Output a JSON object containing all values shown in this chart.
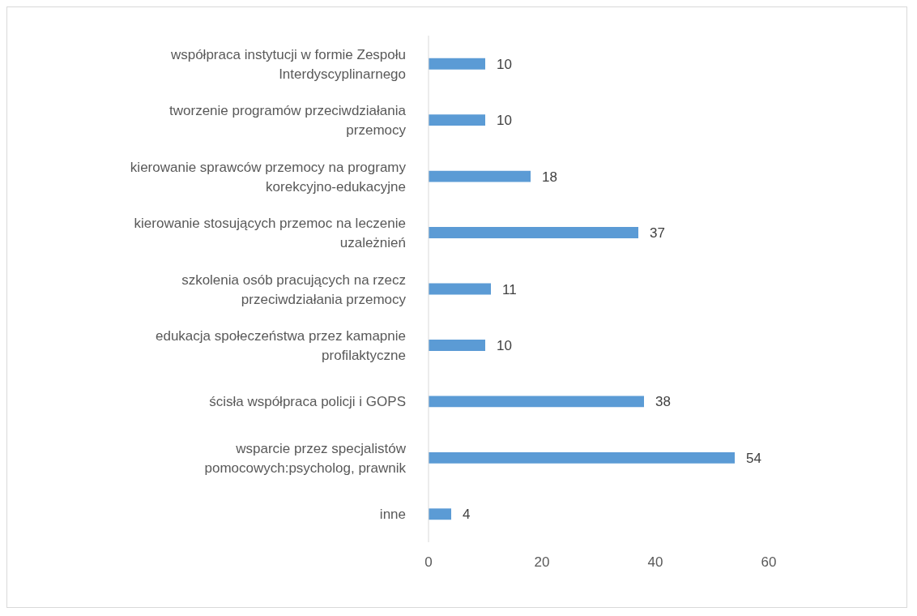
{
  "chart_data": {
    "type": "bar",
    "orientation": "horizontal",
    "categories": [
      "współpraca instytucji w formie Zespołu Interdyscyplinarnego",
      "tworzenie programów przeciwdziałania przemocy",
      "kierowanie sprawców przemocy na programy korekcyjno-edukacyjne",
      "kierowanie stosujących przemoc na leczenie uzależnień",
      "szkolenia osób pracujących na rzecz przeciwdziałania przemocy",
      "edukacja społeczeństwa przez kamapnie profilaktyczne",
      "ścisła współpraca policji i GOPS",
      "wsparcie przez specjalistów pomocowych:psycholog, prawnik",
      "inne"
    ],
    "values": [
      10,
      10,
      18,
      37,
      11,
      10,
      38,
      54,
      4
    ],
    "color": "#5b9bd5",
    "xlim": [
      0,
      60
    ],
    "xticks": [
      0,
      20,
      40,
      60
    ],
    "grid": false,
    "data_labels": true
  }
}
